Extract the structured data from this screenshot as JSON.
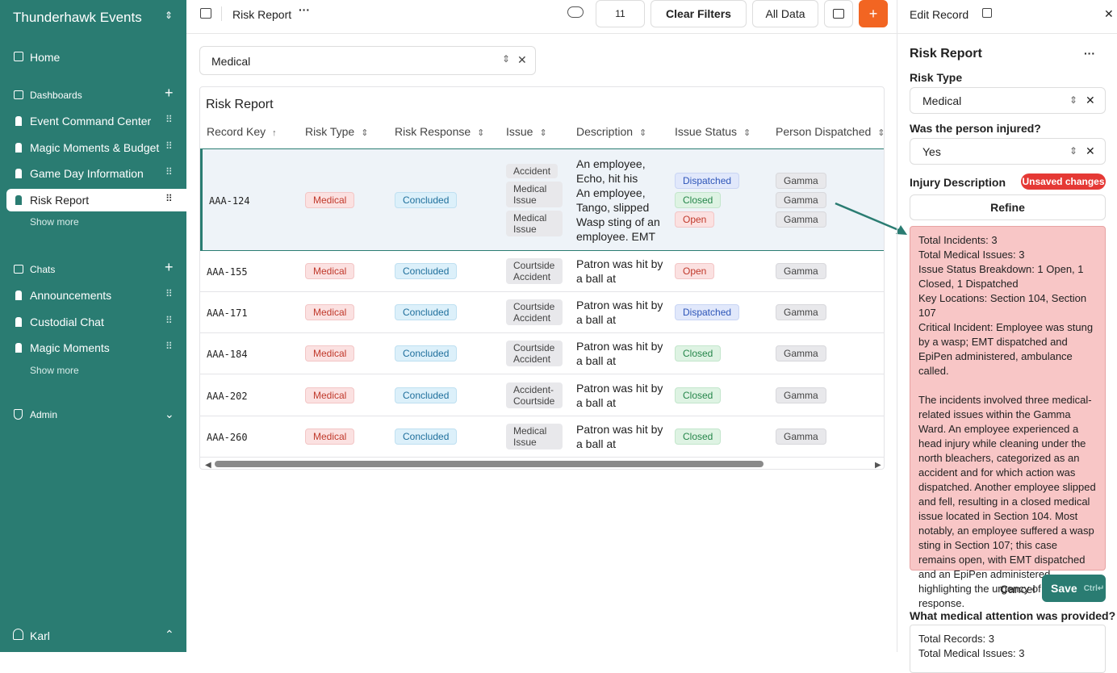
{
  "sidebar": {
    "workspace": "Thunderhawk Events",
    "home": "Home",
    "sections": [
      {
        "title": "Dashboards",
        "items": [
          "Event Command Center",
          "Magic Moments & Budget",
          "Game Day Information",
          "Risk Report"
        ],
        "more": "Show more"
      },
      {
        "title": "Chats",
        "items": [
          "Announcements",
          "Custodial Chat",
          "Magic Moments"
        ],
        "more": "Show more"
      }
    ],
    "admin": "Admin",
    "user": "Karl"
  },
  "topbar": {
    "breadcrumb": "Risk Report",
    "members": "11",
    "clear": "Clear Filters",
    "scope": "All Data",
    "add": "+"
  },
  "filter": {
    "value": "Medical"
  },
  "table": {
    "title": "Risk Report",
    "columns": [
      "Record Key",
      "Risk Type",
      "Risk Response",
      "Issue",
      "Description",
      "Issue Status",
      "Person Dispatched"
    ],
    "rows": [
      {
        "key": "AAA-124",
        "type": "Medical",
        "response": "Concluded",
        "issues": [
          "Accident",
          "Medical Issue",
          "Medical Issue"
        ],
        "descriptions": [
          "An employee, Echo, hit his head...",
          "An employee, Tango, slipped an...",
          "Wasp sting of an employee. EMT ..."
        ],
        "statuses": [
          "Dispatched",
          "Closed",
          "Open"
        ],
        "persons": [
          "Gamma",
          "Gamma",
          "Gamma"
        ]
      },
      {
        "key": "AAA-155",
        "type": "Medical",
        "response": "Concluded",
        "issues": [
          "Courtside Accident"
        ],
        "descriptions": [
          "Patron was hit by a ball at courtside. ..."
        ],
        "statuses": [
          "Open"
        ],
        "persons": [
          "Gamma"
        ]
      },
      {
        "key": "AAA-171",
        "type": "Medical",
        "response": "Concluded",
        "issues": [
          "Courtside Accident"
        ],
        "descriptions": [
          "Patron was hit by a ball at courtside. ..."
        ],
        "statuses": [
          "Dispatched"
        ],
        "persons": [
          "Gamma"
        ]
      },
      {
        "key": "AAA-184",
        "type": "Medical",
        "response": "Concluded",
        "issues": [
          "Courtside Accident"
        ],
        "descriptions": [
          "Patron was hit by a ball at courtside. ..."
        ],
        "statuses": [
          "Closed"
        ],
        "persons": [
          "Gamma"
        ]
      },
      {
        "key": "AAA-202",
        "type": "Medical",
        "response": "Concluded",
        "issues": [
          "Accident-Courtside"
        ],
        "descriptions": [
          "Patron was hit by a ball at courtside. ..."
        ],
        "statuses": [
          "Closed"
        ],
        "persons": [
          "Gamma"
        ]
      },
      {
        "key": "AAA-260",
        "type": "Medical",
        "response": "Concluded",
        "issues": [
          "Medical Issue"
        ],
        "descriptions": [
          "Patron was hit by a ball at courtside. ..."
        ],
        "statuses": [
          "Closed"
        ],
        "persons": [
          "Gamma"
        ]
      }
    ]
  },
  "panel": {
    "header": "Edit Record",
    "title": "Risk Report",
    "more": "···",
    "risk_type_label": "Risk Type",
    "risk_type": "Medical",
    "injured_label": "Was the person injured?",
    "injured": "Yes",
    "injury_label": "Injury Description",
    "unsaved": "Unsaved changes",
    "refine": "Refine",
    "injury_text": [
      "Total Incidents: 3",
      "Total Medical Issues: 3",
      "Issue Status Breakdown: 1 Open, 1 Closed, 1 Dispatched",
      "Key Locations: Section 104, Section 107",
      "Critical Incident: Employee was stung by a wasp; EMT dispatched and EpiPen administered, ambulance called.",
      "",
      "The incidents involved three medical-related issues within the Gamma Ward. An employee experienced a head injury while cleaning under the north bleachers, categorized as an accident and for which action was dispatched. Another employee slipped and fell, resulting in a closed medical issue located in Section 104. Most notably, an employee suffered a wasp sting in Section 107; this case remains open, with EMT dispatched and an EpiPen administered, highlighting the urgency of the response."
    ],
    "cancel": "Cancel",
    "save": "Save",
    "shortcut": "Ctrl↵",
    "attention_label": "What medical attention was provided?",
    "attention_text": [
      "Total Records: 3",
      "Total Medical Issues: 3"
    ]
  }
}
